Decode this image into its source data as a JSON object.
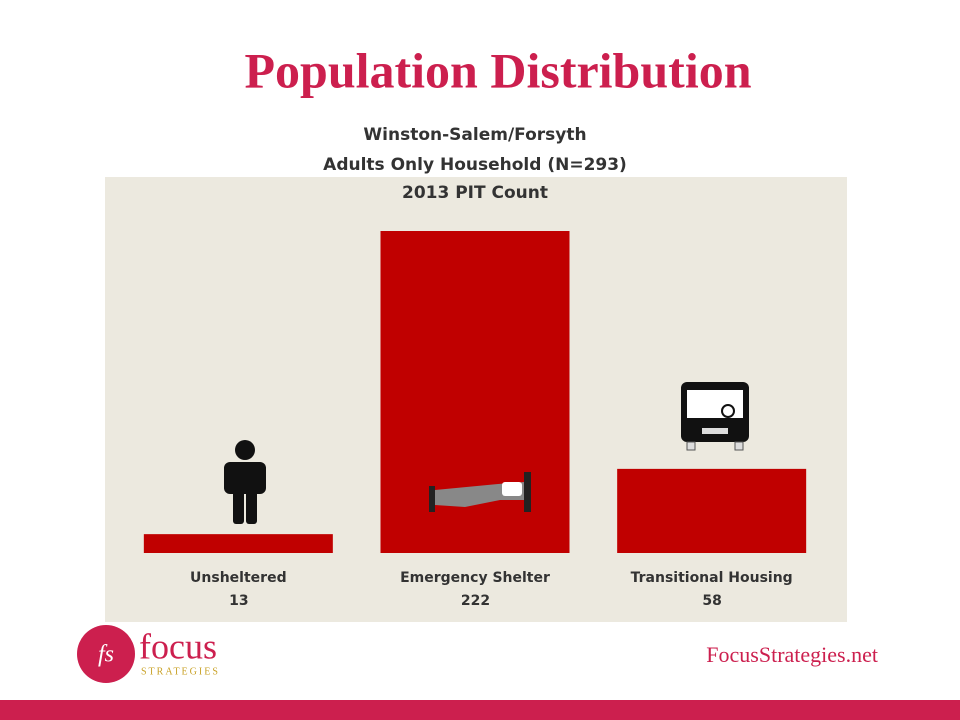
{
  "chart_data": {
    "type": "bar",
    "title": "Population Distribution",
    "subtitle": [
      "Winston-Salem/Forsyth",
      "Adults Only Household (N=293)",
      "2013 PIT Count"
    ],
    "categories": [
      "Unsheltered",
      "Emergency Shelter",
      "Transitional Housing"
    ],
    "values": [
      13,
      222,
      58
    ],
    "color": "#c00000"
  },
  "footer": {
    "logo_mark": "fs",
    "logo_text": "focus",
    "logo_subtext": "STRATEGIES",
    "url": "FocusStrategies.net"
  }
}
